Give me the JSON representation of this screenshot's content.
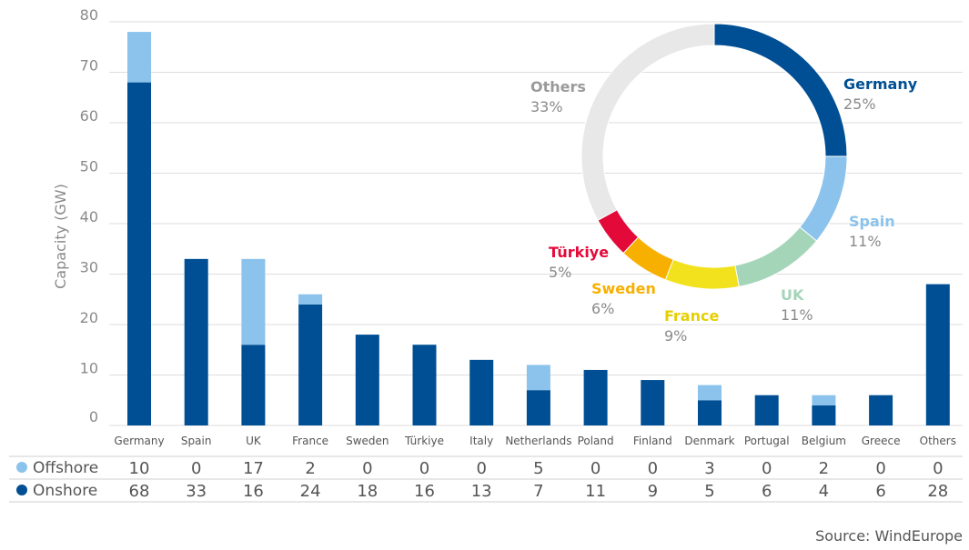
{
  "chart_data": [
    {
      "type": "bar",
      "stacked": true,
      "ylabel": "Capacity (GW)",
      "ylim": [
        0,
        80
      ],
      "yticks": [
        0,
        10,
        20,
        30,
        40,
        50,
        60,
        70,
        80
      ],
      "grid": true,
      "categories": [
        "Germany",
        "Spain",
        "UK",
        "France",
        "Sweden",
        "Türkiye",
        "Italy",
        "Netherlands",
        "Poland",
        "Finland",
        "Denmark",
        "Portugal",
        "Belgium",
        "Greece",
        "Others"
      ],
      "series": [
        {
          "name": "Onshore",
          "color": "#004f94",
          "values": [
            68,
            33,
            16,
            24,
            18,
            16,
            13,
            7,
            11,
            9,
            5,
            6,
            4,
            6,
            28
          ]
        },
        {
          "name": "Offshore",
          "color": "#8bc3ec",
          "values": [
            10,
            0,
            17,
            2,
            0,
            0,
            0,
            5,
            0,
            0,
            3,
            0,
            2,
            0,
            0
          ]
        }
      ],
      "table": {
        "rows": [
          {
            "label": "Offshore",
            "color": "#8bc3ec",
            "values": [
              "10",
              "0",
              "17",
              "2",
              "0",
              "0",
              "0",
              "5",
              "0",
              "0",
              "3",
              "0",
              "2",
              "0",
              "0"
            ]
          },
          {
            "label": "Onshore",
            "color": "#004f94",
            "values": [
              "68",
              "33",
              "16",
              "24",
              "18",
              "16",
              "13",
              "7",
              "11",
              "9",
              "5",
              "6",
              "4",
              "6",
              "28"
            ]
          }
        ]
      }
    },
    {
      "type": "pie",
      "donut": true,
      "slices": [
        {
          "label": "Germany",
          "value": 25,
          "pct": "25%",
          "color": "#004f94"
        },
        {
          "label": "Spain",
          "value": 11,
          "pct": "11%",
          "color": "#8bc3ec"
        },
        {
          "label": "UK",
          "value": 11,
          "pct": "11%",
          "color": "#a5d5b9"
        },
        {
          "label": "France",
          "value": 9,
          "pct": "9%",
          "color": "#f2e21e"
        },
        {
          "label": "Sweden",
          "value": 6,
          "pct": "6%",
          "color": "#f8b000"
        },
        {
          "label": "Türkiye",
          "value": 5,
          "pct": "5%",
          "color": "#e30a3a"
        },
        {
          "label": "Others",
          "value": 33,
          "pct": "33%",
          "color": "#e8e8e8"
        }
      ]
    }
  ],
  "source": "Source: WindEurope"
}
